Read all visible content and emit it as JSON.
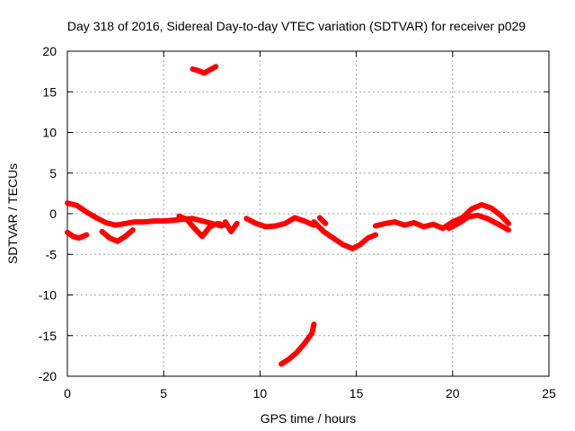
{
  "chart_data": {
    "type": "line",
    "title": "Day 318 of 2016, Sidereal Day-to-day VTEC variation (SDTVAR) for receiver p029",
    "xlabel": "GPS time / hours",
    "ylabel": "SDTVAR / TECUs",
    "xlim": [
      0,
      25
    ],
    "ylim": [
      -20,
      20
    ],
    "xticks": [
      0,
      5,
      10,
      15,
      20,
      25
    ],
    "yticks": [
      -20,
      -15,
      -10,
      -5,
      0,
      5,
      10,
      15,
      20
    ],
    "grid": true,
    "series_color": "#ff0000",
    "series": [
      {
        "name": "main-trace-upper",
        "x": [
          0.0,
          0.5,
          1.0,
          1.5,
          2.0,
          2.5,
          3.0,
          3.5,
          4.0,
          4.5,
          5.0,
          5.5,
          6.0,
          6.5,
          7.0,
          7.5,
          8.0
        ],
        "y": [
          1.3,
          1.0,
          0.2,
          -0.5,
          -1.1,
          -1.4,
          -1.2,
          -1.0,
          -1.0,
          -0.9,
          -0.9,
          -0.8,
          -0.7,
          -0.6,
          -0.9,
          -1.2,
          -1.5
        ]
      },
      {
        "name": "main-trace-lower-early",
        "x": [
          0.0,
          0.3,
          0.6,
          1.0
        ],
        "y": [
          -2.3,
          -2.8,
          -3.0,
          -2.6
        ]
      },
      {
        "name": "main-trace-dip",
        "x": [
          1.8,
          2.2,
          2.6,
          3.0,
          3.4
        ],
        "y": [
          -2.2,
          -3.0,
          -3.4,
          -2.8,
          -2.0
        ]
      },
      {
        "name": "main-trace-branch",
        "x": [
          5.8,
          6.2,
          6.6,
          7.0,
          7.4,
          7.8,
          8.2
        ],
        "y": [
          -0.3,
          -0.7,
          -1.8,
          -2.8,
          -1.6,
          -1.2,
          -1.4
        ]
      },
      {
        "name": "segment-8-9",
        "x": [
          8.2,
          8.5,
          8.8
        ],
        "y": [
          -1.0,
          -2.2,
          -1.2
        ]
      },
      {
        "name": "segment-9-13",
        "x": [
          9.3,
          9.8,
          10.3,
          10.8,
          11.3,
          11.8,
          12.3,
          12.8
        ],
        "y": [
          -0.6,
          -1.2,
          -1.6,
          -1.5,
          -1.2,
          -0.5,
          -0.9,
          -1.4
        ]
      },
      {
        "name": "segment-13-16",
        "x": [
          12.8,
          13.3,
          13.8,
          14.3,
          14.8,
          15.2,
          15.6,
          16.0
        ],
        "y": [
          -1.0,
          -2.2,
          -3.0,
          -3.8,
          -4.3,
          -3.8,
          -3.0,
          -2.6
        ]
      },
      {
        "name": "segment-13-15-side",
        "x": [
          13.1,
          13.4
        ],
        "y": [
          -0.5,
          -1.2
        ]
      },
      {
        "name": "segment-16-23",
        "x": [
          16.0,
          16.5,
          17.0,
          17.5,
          18.0,
          18.5,
          19.0,
          19.5,
          20.0,
          20.5,
          21.0,
          21.5,
          22.0,
          22.5,
          22.9
        ],
        "y": [
          -1.5,
          -1.2,
          -1.0,
          -1.4,
          -1.1,
          -1.6,
          -1.3,
          -1.8,
          -1.0,
          -0.5,
          0.6,
          1.1,
          0.7,
          -0.2,
          -1.2
        ]
      },
      {
        "name": "segment-19-23-lower",
        "x": [
          19.8,
          20.3,
          20.8,
          21.3,
          21.8,
          22.3,
          22.9
        ],
        "y": [
          -1.8,
          -1.2,
          -0.4,
          -0.2,
          -0.6,
          -1.2,
          -2.0
        ]
      },
      {
        "name": "outlier-high",
        "x": [
          6.5,
          6.8,
          7.1,
          7.4,
          7.7
        ],
        "y": [
          17.8,
          17.6,
          17.3,
          17.7,
          18.1
        ]
      },
      {
        "name": "outlier-low",
        "x": [
          11.1,
          11.5,
          11.9,
          12.3,
          12.7,
          12.8
        ],
        "y": [
          -18.5,
          -17.9,
          -17.1,
          -16.0,
          -14.7,
          -13.6
        ]
      }
    ]
  }
}
